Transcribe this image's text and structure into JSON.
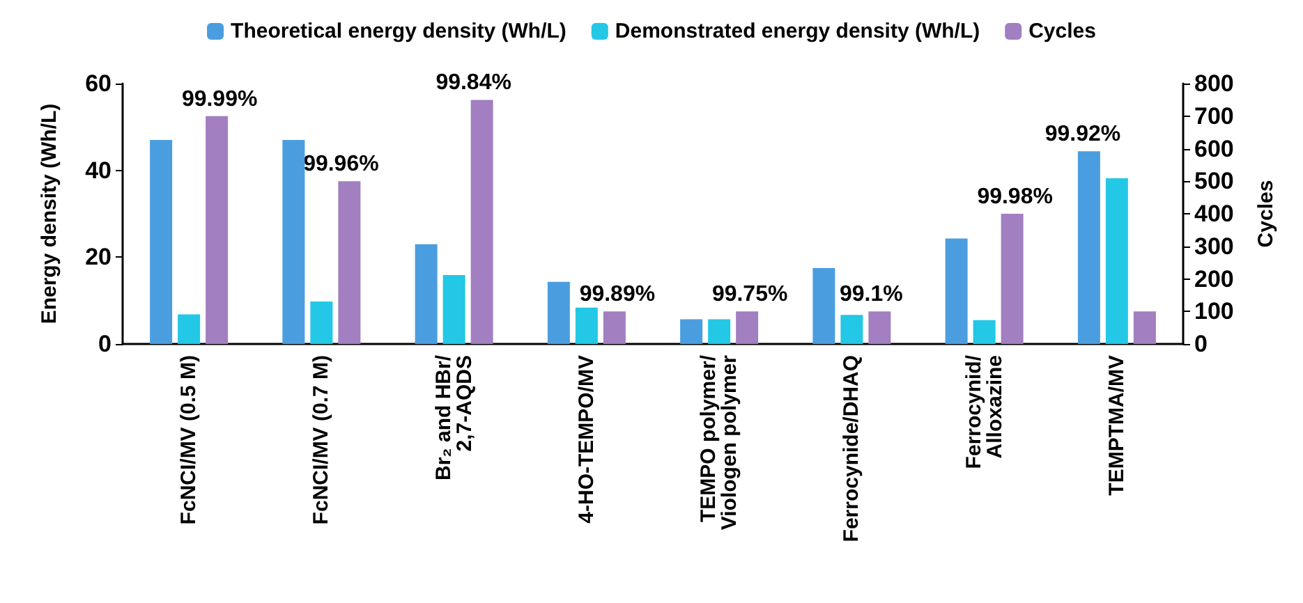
{
  "chart_data": {
    "type": "bar",
    "categories": [
      "FcNCI/MV (0.5 M)",
      "FcNCI/MV (0.7 M)",
      "Br₂ and HBr/\n2,7-AQDS",
      "4-HO-TEMPO/MV",
      "TEMPO polymer/\nViologen polymer",
      "Ferrocynide/DHAQ",
      "Ferrocynid/\nAlloxazine",
      "TEMPTMA/MV"
    ],
    "ylabel": "Energy density (Wh/L)",
    "y2label": "Cycles",
    "ylim": [
      0,
      60
    ],
    "yticks": [
      0,
      20,
      40,
      60
    ],
    "y2lim": [
      0,
      800
    ],
    "y2ticks": [
      0,
      100,
      200,
      300,
      400,
      500,
      600,
      700,
      800
    ],
    "legend": "top",
    "grid": false,
    "series": [
      {
        "name": "Theoretical energy density (Wh/L)",
        "color": "#4a9ee0",
        "values": [
          47,
          47,
          23,
          14.3,
          5.7,
          17.5,
          24.3,
          44.4
        ]
      },
      {
        "name": "Demonstrated energy density (Wh/L)",
        "color": "#22c8e6",
        "values": [
          6.8,
          9.8,
          15.9,
          8.4,
          5.7,
          6.7,
          5.5,
          38.2
        ]
      },
      {
        "name": "Cycles",
        "color": "#a27fc0",
        "axis": "y2",
        "values": [
          700,
          500,
          750,
          100,
          100,
          100,
          400,
          100
        ]
      }
    ],
    "annotations": [
      "99.99%",
      "99.96%",
      "99.84%",
      "99.89%",
      "99.75%",
      "99.1%",
      "99.98%",
      "99.92%"
    ]
  }
}
